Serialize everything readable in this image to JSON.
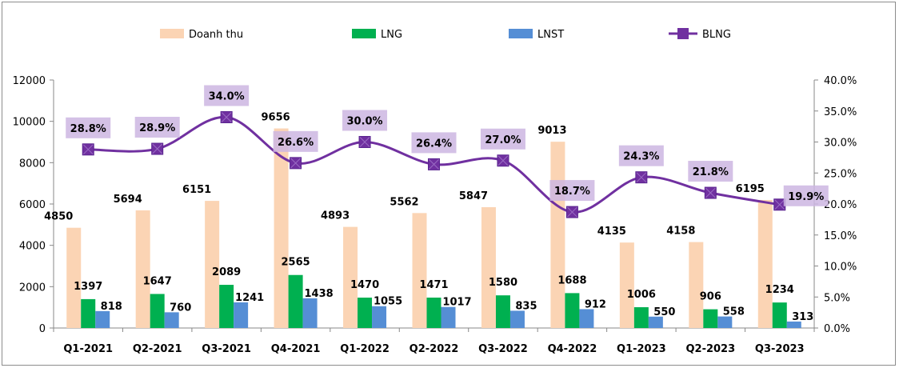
{
  "chart_data": {
    "type": "bar+line",
    "categories": [
      "Q1-2021",
      "Q2-2021",
      "Q3-2021",
      "Q4-2021",
      "Q1-2022",
      "Q2-2022",
      "Q3-2022",
      "Q4-2022",
      "Q1-2023",
      "Q2-2023",
      "Q3-2023"
    ],
    "series": [
      {
        "name": "Doanh thu",
        "type": "bar",
        "axis": "left",
        "color": "#FBD4B4",
        "values": [
          4850,
          5694,
          6151,
          9656,
          4893,
          5562,
          5847,
          9013,
          4135,
          4158,
          6195
        ]
      },
      {
        "name": "LNG",
        "type": "bar",
        "axis": "left",
        "color": "#00B050",
        "values": [
          1397,
          1647,
          2089,
          2565,
          1470,
          1471,
          1580,
          1688,
          1006,
          906,
          1234
        ]
      },
      {
        "name": "LNST",
        "type": "bar",
        "axis": "left",
        "color": "#558ED5",
        "values": [
          818,
          760,
          1241,
          1438,
          1055,
          1017,
          835,
          912,
          550,
          558,
          313
        ]
      },
      {
        "name": "BLNG",
        "type": "line",
        "axis": "right",
        "color": "#7030A0",
        "values": [
          28.8,
          28.9,
          34.0,
          26.6,
          30.0,
          26.4,
          27.0,
          18.7,
          24.3,
          21.8,
          19.9
        ],
        "labels": [
          "28.8%",
          "28.9%",
          "34.0%",
          "26.6%",
          "30.0%",
          "26.4%",
          "27.0%",
          "18.7%",
          "24.3%",
          "21.8%",
          "19.9%"
        ]
      }
    ],
    "ylim_left": [
      0,
      12000
    ],
    "yticks_left": [
      "0",
      "2000",
      "4000",
      "6000",
      "8000",
      "10000",
      "12000"
    ],
    "ylim_right": [
      0,
      40
    ],
    "yticks_right": [
      "0.0%",
      "5.0%",
      "10.0%",
      "15.0%",
      "20.0%",
      "25.0%",
      "30.0%",
      "35.0%",
      "40.0%"
    ],
    "legend_position": "top",
    "grid": false,
    "label_box_color": "#CDB6E2"
  }
}
